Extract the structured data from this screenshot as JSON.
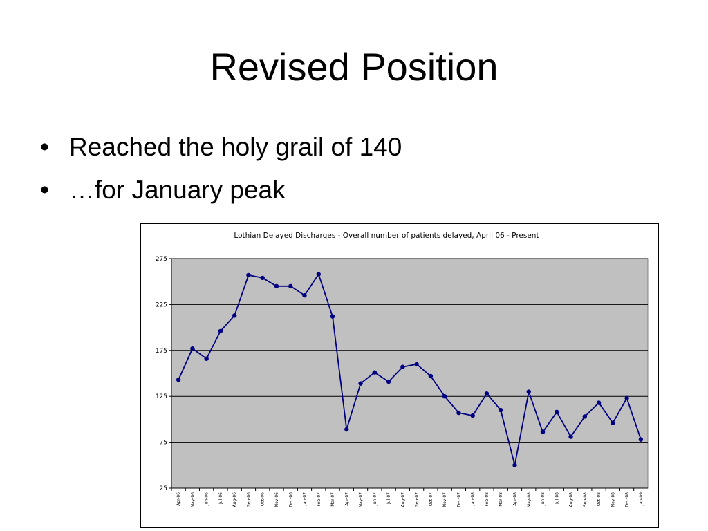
{
  "slide": {
    "title": "Revised Position",
    "bullets": [
      {
        "symbol": "•",
        "text": "Reached the holy grail of 140"
      },
      {
        "symbol": "•",
        "text": "…for January peak"
      }
    ]
  },
  "chart_data": {
    "type": "line",
    "title": "Lothian Delayed Discharges - Overall number of patients delayed, April 06 - Present",
    "xlabel": "",
    "ylabel": "",
    "ylim": [
      25,
      275
    ],
    "yticks": [
      25,
      75,
      125,
      175,
      225,
      275
    ],
    "grid": true,
    "legend": "none",
    "colors": {
      "line": "#000080",
      "plot_bg": "#c0c0c0",
      "grid": "#000000"
    },
    "categories": [
      "Apr-06",
      "May-06",
      "Jun-06",
      "Jul-06",
      "Aug-06",
      "Sep-06",
      "Oct-06",
      "Nov-06",
      "Dec-06",
      "Jan-07",
      "Feb-07",
      "Mar-07",
      "Apr-07",
      "May-07",
      "Jun-07",
      "Jul-07",
      "Aug-07",
      "Sep-07",
      "Oct-07",
      "Nov-07",
      "Dec-07",
      "Jan-08",
      "Feb-08",
      "Mar-08",
      "Apr-08",
      "May-08",
      "Jun-08",
      "Jul-08",
      "Aug-08",
      "Sep-08",
      "Oct-08",
      "Nov-08",
      "Dec-08",
      "Jan-09"
    ],
    "series": [
      {
        "values": [
          143,
          177,
          166,
          196,
          213,
          257,
          254,
          245,
          245,
          235,
          258,
          212,
          89,
          139,
          151,
          141,
          157,
          160,
          147,
          125,
          107,
          104,
          128,
          110,
          50,
          130,
          86,
          108,
          81,
          103,
          118,
          96,
          123,
          78
        ]
      }
    ]
  }
}
